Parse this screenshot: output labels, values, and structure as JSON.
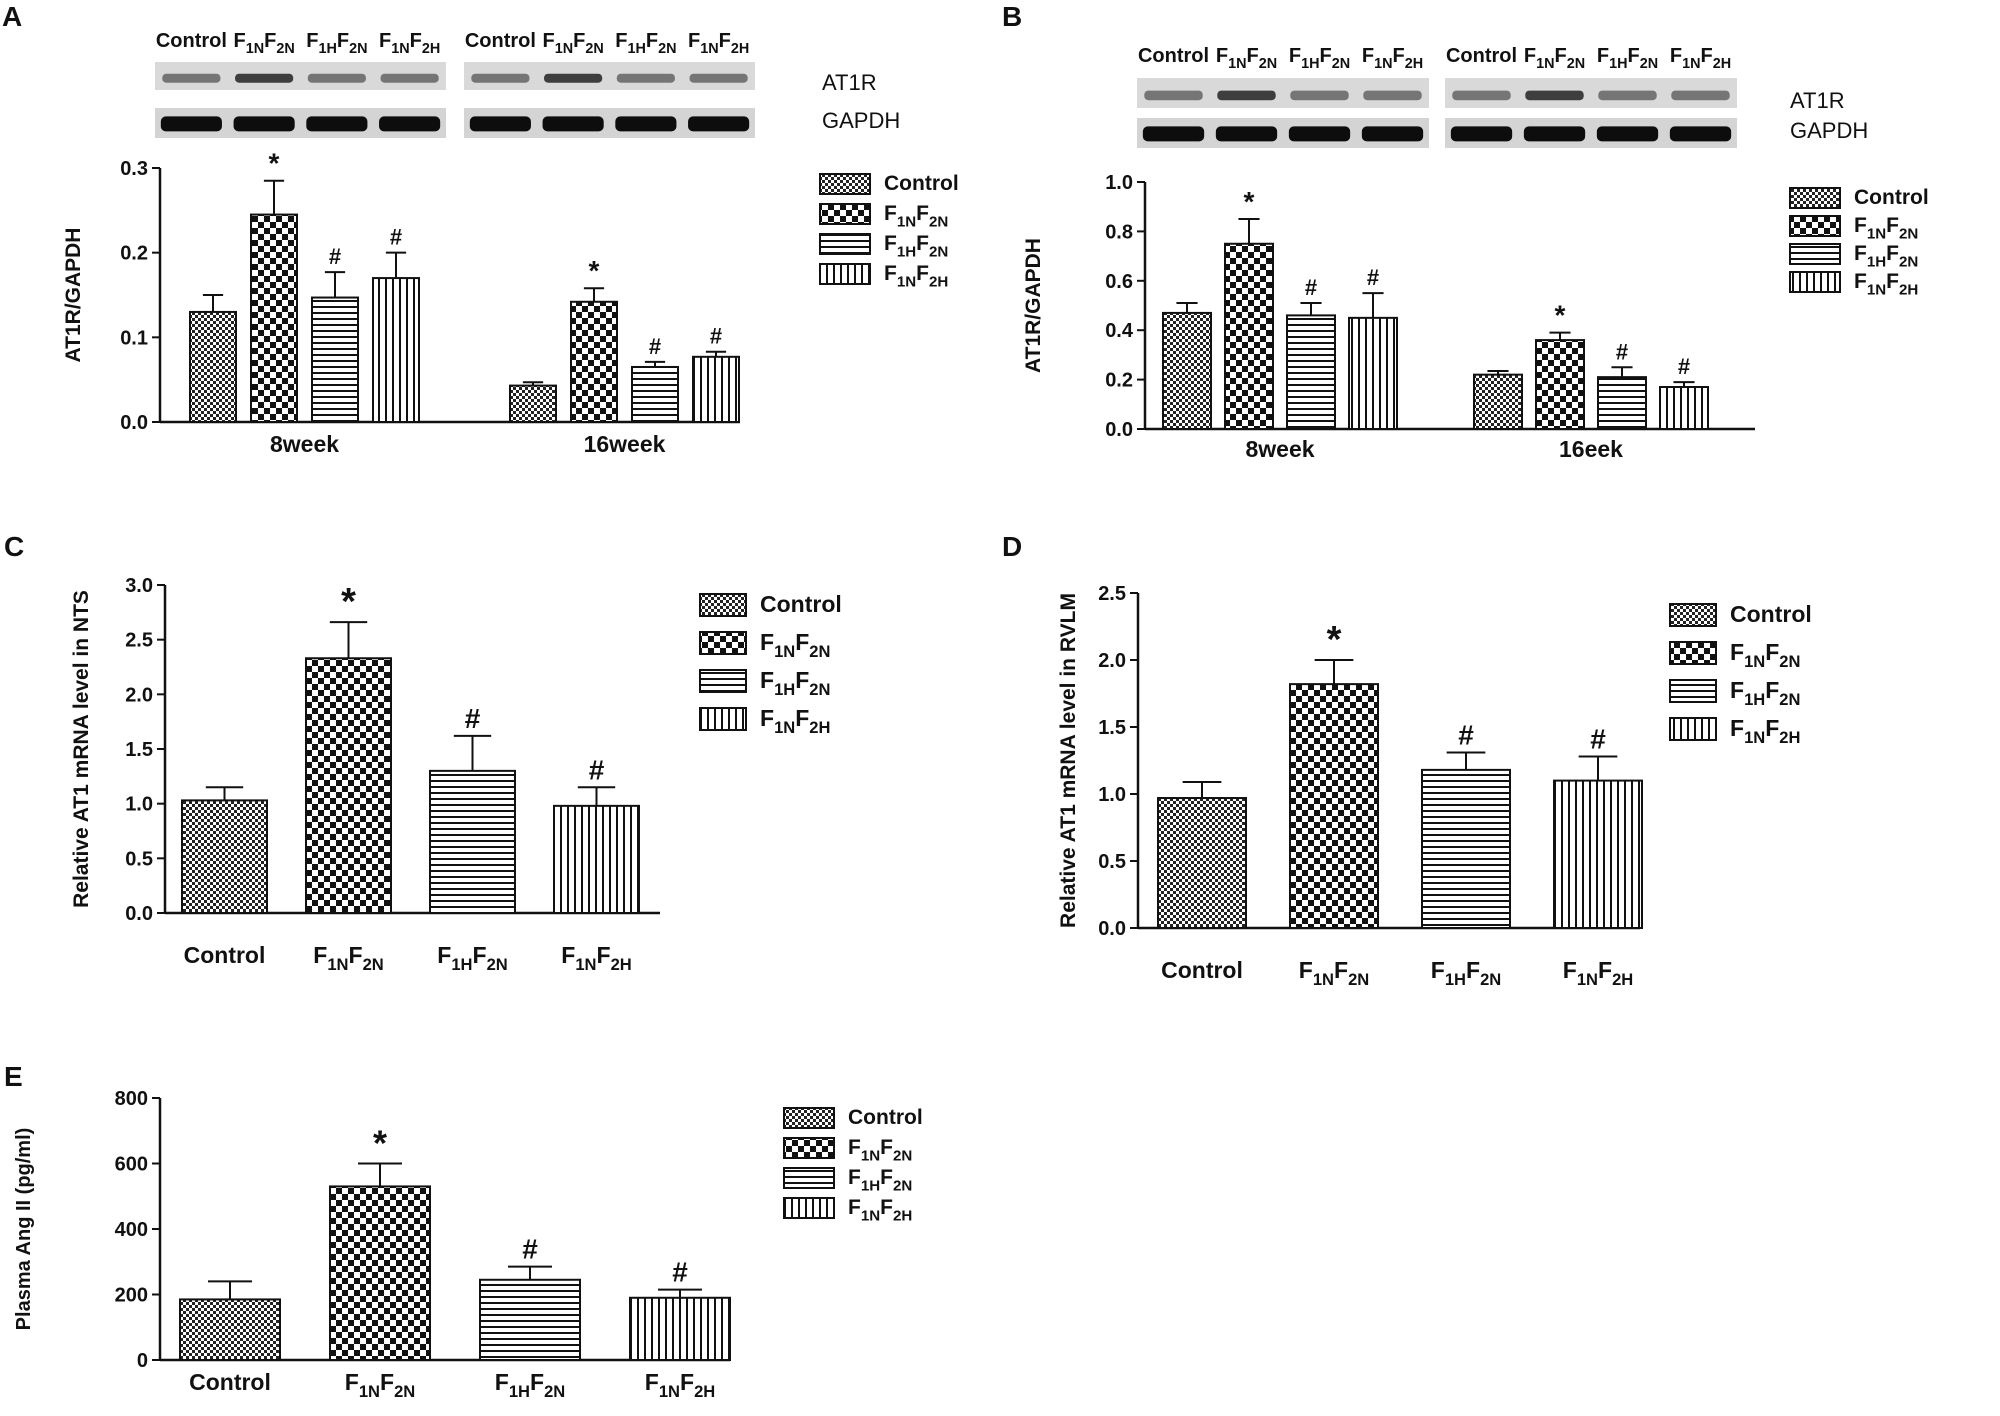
{
  "groups": [
    "Control",
    "F1NF2N",
    "F1HF2N",
    "F1NF2H"
  ],
  "blot_labels": [
    "Control",
    "F1NF2N",
    "F1HF2N",
    "F1NF2H"
  ],
  "protein_labels": [
    "AT1R",
    "GAPDH"
  ],
  "chart_data": [
    {
      "panel": "A",
      "type": "bar",
      "title": "",
      "xlabel": "",
      "ylabel": "AT1R/GAPDH",
      "ylim": [
        0,
        0.3
      ],
      "yticks": [
        "0.0",
        "0.1",
        "0.2",
        "0.3"
      ],
      "categories": [
        "8week",
        "16week"
      ],
      "series": [
        {
          "name": "Control",
          "values": [
            0.13,
            0.043
          ],
          "errors": [
            0.02,
            0.004
          ],
          "marks": [
            "",
            ""
          ]
        },
        {
          "name": "F1NF2N",
          "values": [
            0.245,
            0.142
          ],
          "errors": [
            0.04,
            0.016
          ],
          "marks": [
            "*",
            "*"
          ]
        },
        {
          "name": "F1HF2N",
          "values": [
            0.147,
            0.065
          ],
          "errors": [
            0.03,
            0.006
          ],
          "marks": [
            "#",
            "#"
          ]
        },
        {
          "name": "F1NF2H",
          "values": [
            0.17,
            0.077
          ],
          "errors": [
            0.03,
            0.006
          ],
          "marks": [
            "#",
            "#"
          ]
        }
      ],
      "legend": "right"
    },
    {
      "panel": "B",
      "type": "bar",
      "title": "",
      "xlabel": "",
      "ylabel": "AT1R/GAPDH",
      "ylim": [
        0,
        1.0
      ],
      "yticks": [
        "0.0",
        "0.2",
        "0.4",
        "0.6",
        "0.8",
        "1.0"
      ],
      "categories": [
        "8week",
        "16eek"
      ],
      "series": [
        {
          "name": "Control",
          "values": [
            0.47,
            0.22
          ],
          "errors": [
            0.04,
            0.015
          ],
          "marks": [
            "",
            ""
          ]
        },
        {
          "name": "F1NF2N",
          "values": [
            0.75,
            0.36
          ],
          "errors": [
            0.1,
            0.03
          ],
          "marks": [
            "*",
            "*"
          ]
        },
        {
          "name": "F1HF2N",
          "values": [
            0.46,
            0.21
          ],
          "errors": [
            0.05,
            0.04
          ],
          "marks": [
            "#",
            "#"
          ]
        },
        {
          "name": "F1NF2H",
          "values": [
            0.45,
            0.17
          ],
          "errors": [
            0.1,
            0.02
          ],
          "marks": [
            "#",
            "#"
          ]
        }
      ],
      "legend": "right"
    },
    {
      "panel": "C",
      "type": "bar",
      "title": "",
      "xlabel": "",
      "ylabel": "Relative AT1 mRNA level in NTS",
      "ylim": [
        0,
        3.0
      ],
      "yticks": [
        "0.0",
        "0.5",
        "1.0",
        "1.5",
        "2.0",
        "2.5",
        "3.0"
      ],
      "categories": [
        "Control",
        "F1NF2N",
        "F1HF2N",
        "F1NF2H"
      ],
      "values": [
        1.03,
        2.33,
        1.3,
        0.98
      ],
      "errors": [
        0.12,
        0.33,
        0.32,
        0.17
      ],
      "marks": [
        "",
        "*",
        "#",
        "#"
      ],
      "legend": "right"
    },
    {
      "panel": "D",
      "type": "bar",
      "title": "",
      "xlabel": "",
      "ylabel": "Relative AT1 mRNA level in RVLM",
      "ylim": [
        0,
        2.5
      ],
      "yticks": [
        "0.0",
        "0.5",
        "1.0",
        "1.5",
        "2.0",
        "2.5"
      ],
      "categories": [
        "Control",
        "F1NF2N",
        "F1HF2N",
        "F1NF2H"
      ],
      "values": [
        0.97,
        1.82,
        1.18,
        1.1
      ],
      "errors": [
        0.12,
        0.18,
        0.13,
        0.18
      ],
      "marks": [
        "",
        "*",
        "#",
        "#"
      ],
      "legend": "right"
    },
    {
      "panel": "E",
      "type": "bar",
      "title": "",
      "xlabel": "",
      "ylabel": "Plasma Ang II (pg/ml)",
      "ylim": [
        0,
        800
      ],
      "yticks": [
        "0",
        "200",
        "400",
        "600",
        "800"
      ],
      "categories": [
        "Control",
        "F1NF2N",
        "F1HF2N",
        "F1NF2H"
      ],
      "values": [
        185,
        530,
        245,
        190
      ],
      "errors": [
        55,
        70,
        40,
        25
      ],
      "marks": [
        "",
        "*",
        "#",
        "#"
      ],
      "legend": "right"
    }
  ]
}
